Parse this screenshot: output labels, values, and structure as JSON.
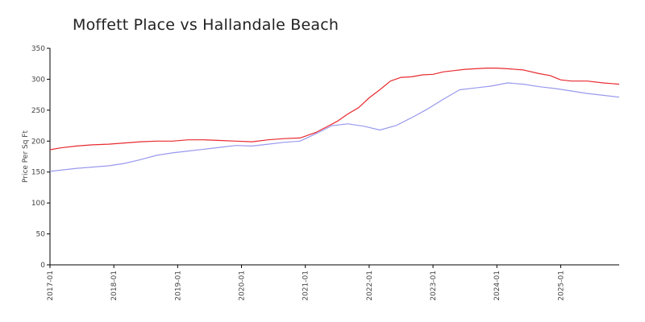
{
  "chart_data": {
    "type": "line",
    "title": "Moffett Place vs Hallandale Beach",
    "xlabel": "",
    "ylabel": "Price Per Sq Ft",
    "ylim": [
      0,
      350
    ],
    "yticks": [
      0,
      50,
      100,
      150,
      200,
      250,
      300,
      350
    ],
    "xlim": [
      "2017-01",
      "2025-12"
    ],
    "xticks": [
      "2017-01",
      "2018-01",
      "2019-01",
      "2020-01",
      "2021-01",
      "2022-01",
      "2023-01",
      "2024-01",
      "2025-01"
    ],
    "grid": false,
    "legend": "none",
    "series": [
      {
        "color": "#e8292e",
        "x": [
          "2017-01",
          "2017-03",
          "2017-06",
          "2017-09",
          "2017-12",
          "2018-03",
          "2018-06",
          "2018-09",
          "2018-12",
          "2019-03",
          "2019-06",
          "2019-09",
          "2019-12",
          "2020-03",
          "2020-06",
          "2020-09",
          "2020-12",
          "2021-03",
          "2021-05",
          "2021-07",
          "2021-09",
          "2021-11",
          "2022-01",
          "2022-03",
          "2022-05",
          "2022-07",
          "2022-09",
          "2022-11",
          "2023-01",
          "2023-03",
          "2023-05",
          "2023-07",
          "2023-09",
          "2023-11",
          "2024-01",
          "2024-03",
          "2024-06",
          "2024-09",
          "2024-11",
          "2025-01",
          "2025-03",
          "2025-06",
          "2025-09",
          "2025-12"
        ],
        "values": [
          186,
          189,
          192,
          194,
          195,
          197,
          199,
          200,
          200,
          202,
          202,
          201,
          200,
          199,
          202,
          204,
          205,
          214,
          223,
          232,
          244,
          254,
          270,
          283,
          297,
          303,
          304,
          307,
          308,
          312,
          314,
          316,
          317,
          318,
          318,
          317,
          315,
          309,
          306,
          299,
          297,
          297,
          294,
          292
        ]
      },
      {
        "color": "#9999ee",
        "x": [
          "2017-01",
          "2017-06",
          "2017-12",
          "2018-03",
          "2018-06",
          "2018-09",
          "2018-12",
          "2019-03",
          "2019-06",
          "2019-09",
          "2019-12",
          "2020-03",
          "2020-06",
          "2020-09",
          "2020-12",
          "2021-03",
          "2021-06",
          "2021-09",
          "2021-12",
          "2022-03",
          "2022-06",
          "2022-09",
          "2022-12",
          "2023-03",
          "2023-06",
          "2023-09",
          "2023-12",
          "2024-03",
          "2024-06",
          "2024-09",
          "2024-12",
          "2025-03",
          "2025-06",
          "2025-09",
          "2025-12"
        ],
        "values": [
          151,
          156,
          160,
          164,
          170,
          177,
          181,
          184,
          187,
          190,
          193,
          192,
          195,
          198,
          200,
          212,
          225,
          228,
          224,
          218,
          225,
          238,
          252,
          268,
          283,
          286,
          289,
          294,
          292,
          288,
          285,
          281,
          277,
          274,
          271
        ]
      }
    ]
  }
}
